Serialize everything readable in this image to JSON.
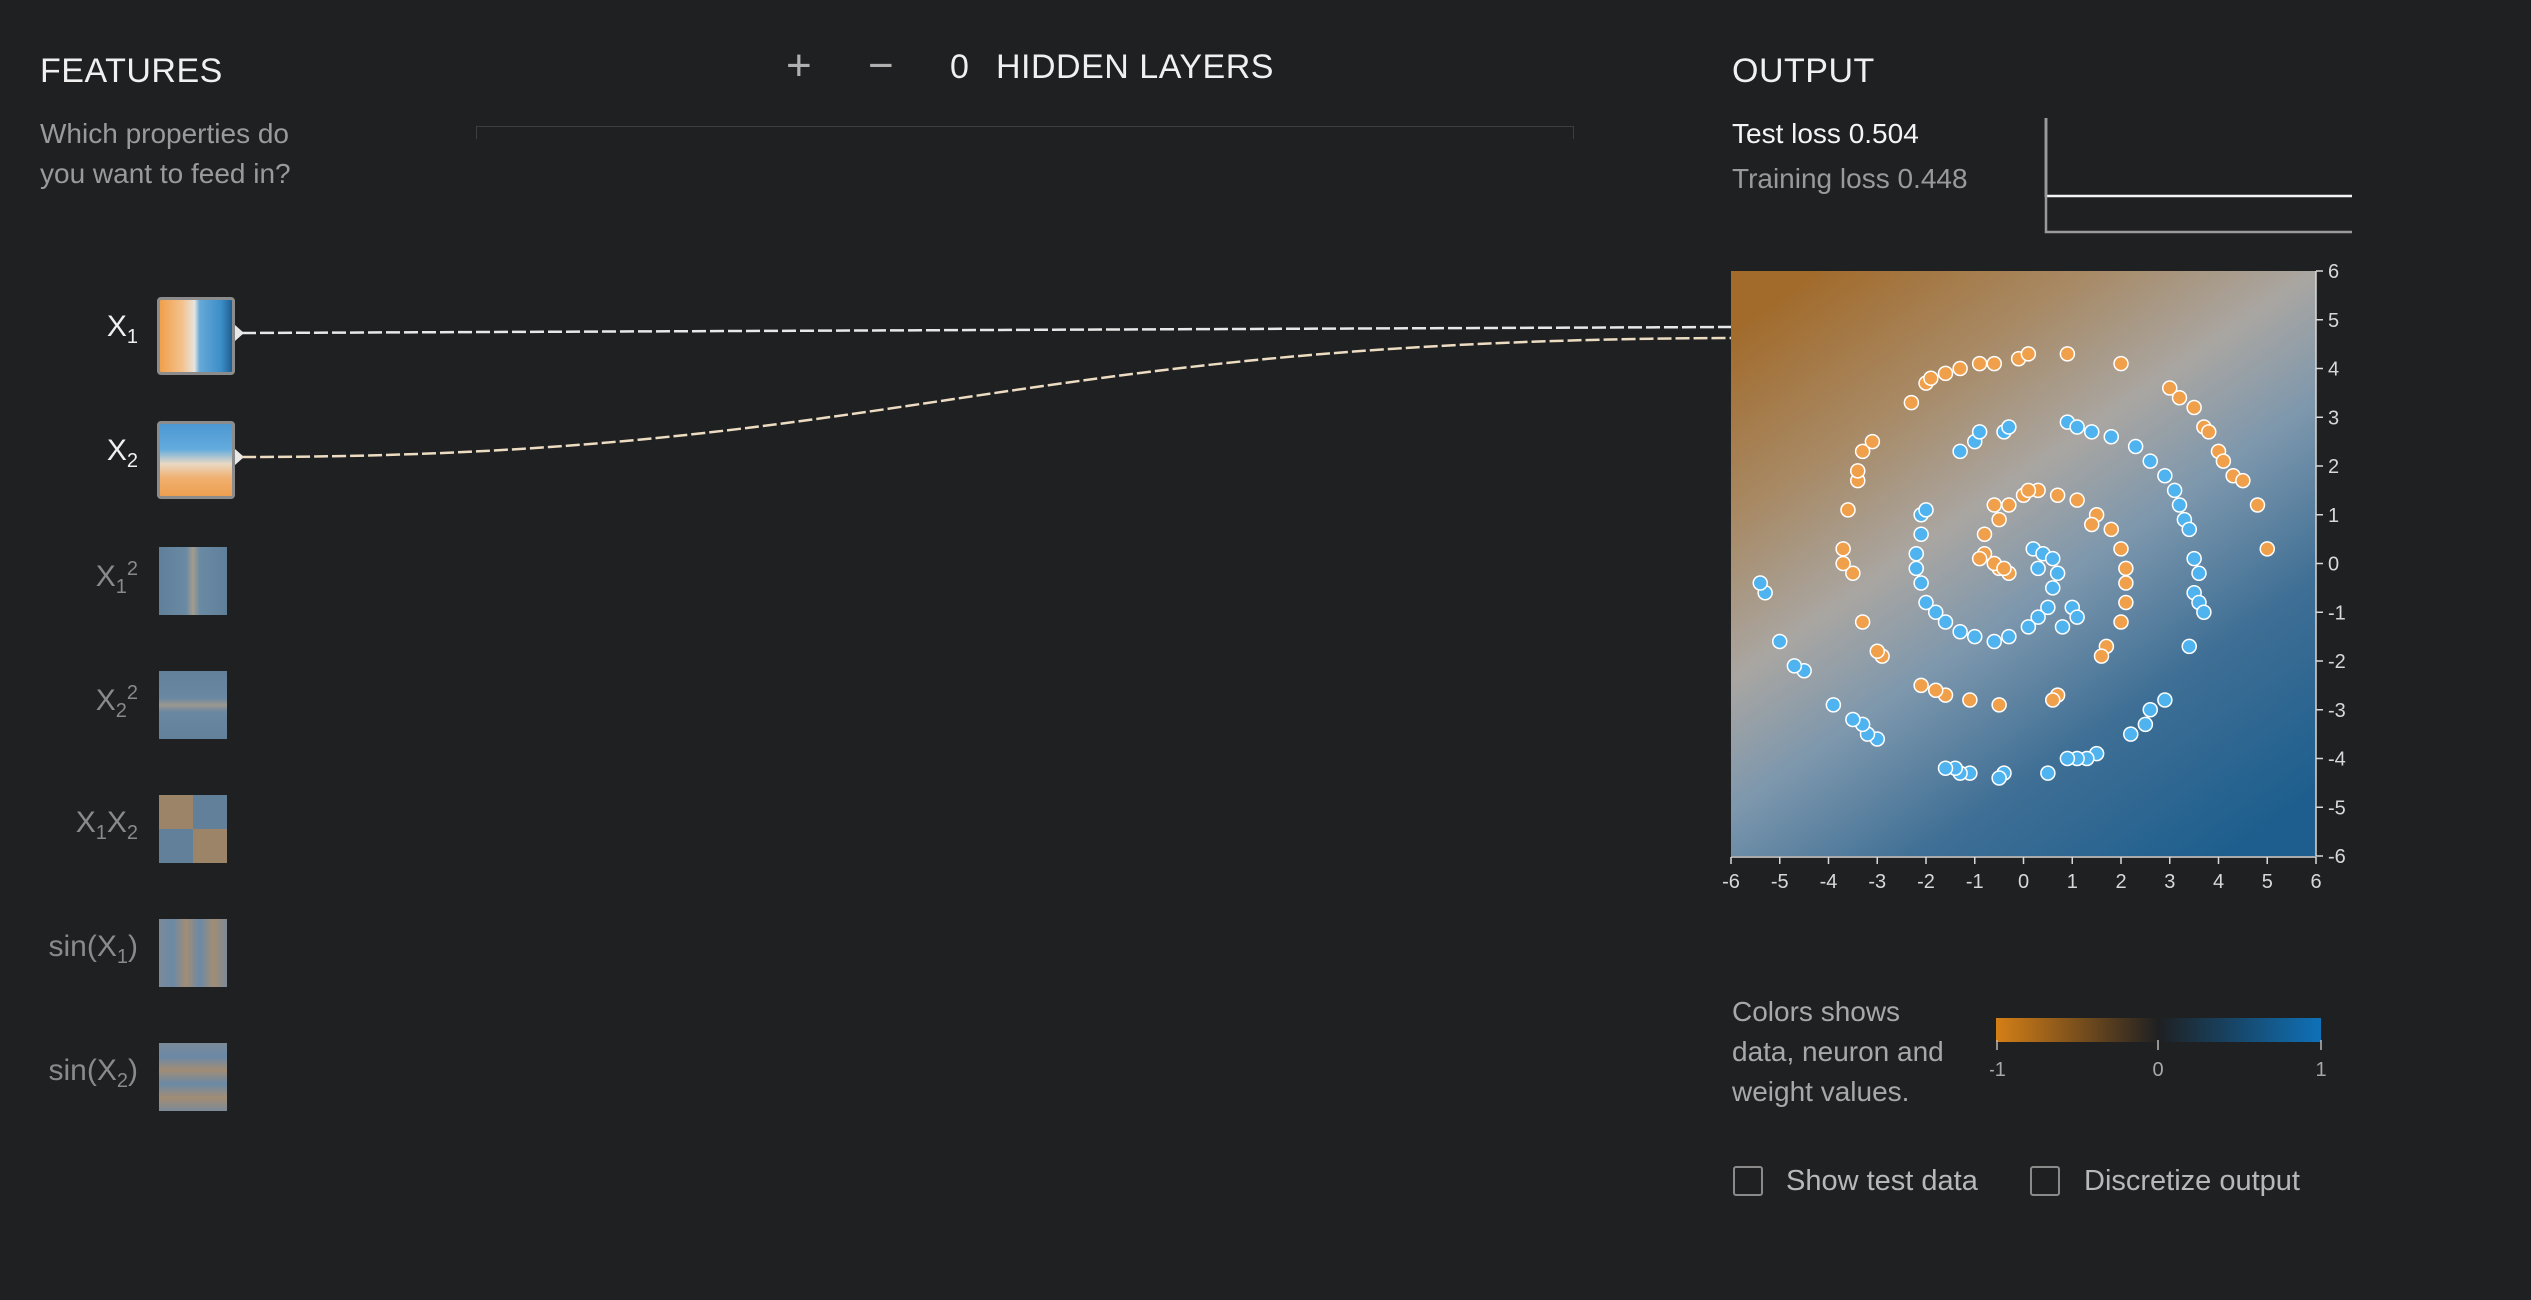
{
  "features": {
    "title": "FEATURES",
    "subtitle_line1": "Which properties do",
    "subtitle_line2": "you want to feed in?",
    "items": [
      {
        "base": "X",
        "sub": "1",
        "sup": "",
        "suffix": "",
        "active": true
      },
      {
        "base": "X",
        "sub": "2",
        "sup": "",
        "suffix": "",
        "active": true
      },
      {
        "base": "X",
        "sub": "1",
        "sup": "2",
        "suffix": "",
        "active": false
      },
      {
        "base": "X",
        "sub": "2",
        "sup": "2",
        "suffix": "",
        "active": false
      },
      {
        "base": "X",
        "sub": "1",
        "sup": "",
        "suffix": "X",
        "sub2": "2",
        "active": false
      },
      {
        "base": "sin(X",
        "sub": "1",
        "sup": "",
        "suffix": ")",
        "active": false
      },
      {
        "base": "sin(X",
        "sub": "2",
        "sup": "",
        "suffix": ")",
        "active": false
      }
    ]
  },
  "layers": {
    "add_symbol": "+",
    "remove_symbol": "−",
    "count": "0",
    "label": "HIDDEN LAYERS"
  },
  "output": {
    "title": "OUTPUT",
    "test_loss": "Test loss 0.504",
    "training_loss": "Training loss 0.448"
  },
  "legend": {
    "line1": "Colors shows",
    "line2": "data, neuron and",
    "line3": "weight values.",
    "ticks": [
      "-1",
      "0",
      "1"
    ],
    "colors": {
      "negative": "#d57f16",
      "zero": "#1f2022",
      "positive": "#0f71b8"
    }
  },
  "options": {
    "show_test_data": "Show test data",
    "discretize_output": "Discretize output"
  },
  "colors": {
    "orange": "#f0a04b",
    "blue": "#4fb3ef",
    "bg": "#1f2022"
  },
  "chart_data": {
    "type": "scatter",
    "xlim": [
      -6,
      6
    ],
    "ylim": [
      -6,
      6
    ],
    "x_ticks": [
      "-6",
      "-5",
      "-4",
      "-3",
      "-2",
      "-1",
      "0",
      "1",
      "2",
      "3",
      "4",
      "5",
      "6"
    ],
    "y_ticks": [
      "6",
      "5",
      "4",
      "3",
      "2",
      "1",
      "0",
      "-1",
      "-2",
      "-3",
      "-4",
      "-5",
      "-6"
    ],
    "series": [
      {
        "class": "orange",
        "points": [
          [
            -0.3,
            -0.2
          ],
          [
            -0.5,
            -0.1
          ],
          [
            -0.8,
            0.2
          ],
          [
            -0.8,
            0.6
          ],
          [
            -0.5,
            0.9
          ],
          [
            -0.3,
            1.2
          ],
          [
            0,
            1.4
          ],
          [
            0.3,
            1.5
          ],
          [
            0.7,
            1.4
          ],
          [
            1.1,
            1.3
          ],
          [
            1.5,
            1.0
          ],
          [
            1.8,
            0.7
          ],
          [
            2.0,
            0.3
          ],
          [
            2.1,
            -0.1
          ],
          [
            2.1,
            -0.4
          ],
          [
            2.1,
            -0.8
          ],
          [
            2.0,
            -1.2
          ],
          [
            1.7,
            -1.7
          ],
          [
            1.6,
            -1.9
          ],
          [
            0.7,
            -2.7
          ],
          [
            0.6,
            -2.8
          ],
          [
            -0.5,
            -2.9
          ],
          [
            -1.1,
            -2.8
          ],
          [
            -1.6,
            -2.7
          ],
          [
            -1.8,
            -2.6
          ],
          [
            -2.1,
            -2.5
          ],
          [
            -2.9,
            -1.9
          ],
          [
            -3.0,
            -1.8
          ],
          [
            -3.3,
            -1.2
          ],
          [
            -3.5,
            -0.2
          ],
          [
            -3.7,
            0
          ],
          [
            -3.7,
            0.3
          ],
          [
            -3.6,
            1.1
          ],
          [
            -3.4,
            1.7
          ],
          [
            -3.4,
            1.9
          ],
          [
            -3.3,
            2.3
          ],
          [
            -3.1,
            2.5
          ],
          [
            -2.3,
            3.3
          ],
          [
            -2.0,
            3.7
          ],
          [
            -1.9,
            3.8
          ],
          [
            -1.6,
            3.9
          ],
          [
            -1.3,
            4.0
          ],
          [
            -0.9,
            4.1
          ],
          [
            -0.6,
            4.1
          ],
          [
            -0.1,
            4.2
          ],
          [
            0.1,
            4.3
          ],
          [
            0.9,
            4.3
          ],
          [
            2.0,
            4.1
          ],
          [
            3.0,
            3.6
          ],
          [
            3.2,
            3.4
          ],
          [
            3.5,
            3.2
          ],
          [
            3.7,
            2.8
          ],
          [
            3.8,
            2.7
          ],
          [
            4.0,
            2.3
          ],
          [
            4.1,
            2.1
          ],
          [
            4.3,
            1.8
          ],
          [
            4.5,
            1.7
          ],
          [
            4.8,
            1.2
          ],
          [
            5.0,
            0.3
          ],
          [
            -0.9,
            0.1
          ],
          [
            -0.6,
            0.0
          ],
          [
            -0.4,
            -0.1
          ],
          [
            -0.6,
            1.2
          ],
          [
            0.1,
            1.5
          ],
          [
            1.4,
            0.8
          ]
        ]
      },
      {
        "class": "blue",
        "points": [
          [
            0.2,
            0.3
          ],
          [
            0.4,
            0.2
          ],
          [
            0.6,
            0.1
          ],
          [
            0.7,
            -0.2
          ],
          [
            0.6,
            -0.5
          ],
          [
            0.5,
            -0.9
          ],
          [
            0.3,
            -1.1
          ],
          [
            0.1,
            -1.3
          ],
          [
            -0.3,
            -1.5
          ],
          [
            -0.6,
            -1.6
          ],
          [
            -1.0,
            -1.5
          ],
          [
            -1.3,
            -1.4
          ],
          [
            -1.6,
            -1.2
          ],
          [
            -1.8,
            -1.0
          ],
          [
            -2.0,
            -0.8
          ],
          [
            -2.1,
            -0.4
          ],
          [
            -2.2,
            -0.1
          ],
          [
            -2.2,
            0.2
          ],
          [
            -2.1,
            0.6
          ],
          [
            -2.1,
            1.0
          ],
          [
            -2.0,
            1.1
          ],
          [
            -1.3,
            2.3
          ],
          [
            -1.0,
            2.5
          ],
          [
            -0.9,
            2.7
          ],
          [
            -0.4,
            2.7
          ],
          [
            -0.3,
            2.8
          ],
          [
            0.9,
            2.9
          ],
          [
            1.1,
            2.8
          ],
          [
            1.4,
            2.7
          ],
          [
            1.8,
            2.6
          ],
          [
            2.3,
            2.4
          ],
          [
            2.6,
            2.1
          ],
          [
            2.9,
            1.8
          ],
          [
            3.1,
            1.5
          ],
          [
            3.2,
            1.2
          ],
          [
            3.3,
            0.9
          ],
          [
            3.4,
            0.7
          ],
          [
            3.5,
            0.1
          ],
          [
            3.6,
            -0.2
          ],
          [
            3.5,
            -0.6
          ],
          [
            3.6,
            -0.8
          ],
          [
            3.7,
            -1.0
          ],
          [
            3.4,
            -1.7
          ],
          [
            2.9,
            -2.8
          ],
          [
            2.6,
            -3.0
          ],
          [
            2.5,
            -3.3
          ],
          [
            2.2,
            -3.5
          ],
          [
            1.5,
            -3.9
          ],
          [
            1.3,
            -4.0
          ],
          [
            1.1,
            -4.0
          ],
          [
            0.9,
            -4.0
          ],
          [
            0.5,
            -4.3
          ],
          [
            -0.4,
            -4.3
          ],
          [
            -0.5,
            -4.4
          ],
          [
            -1.1,
            -4.3
          ],
          [
            -1.3,
            -4.3
          ],
          [
            -1.4,
            -4.2
          ],
          [
            -1.6,
            -4.2
          ],
          [
            -3.0,
            -3.6
          ],
          [
            -3.2,
            -3.5
          ],
          [
            -3.3,
            -3.3
          ],
          [
            -3.5,
            -3.2
          ],
          [
            -3.9,
            -2.9
          ],
          [
            -4.5,
            -2.2
          ],
          [
            -4.7,
            -2.1
          ],
          [
            -5.0,
            -1.6
          ],
          [
            -5.3,
            -0.6
          ],
          [
            -5.4,
            -0.4
          ],
          [
            0.3,
            -0.1
          ],
          [
            1.0,
            -0.9
          ],
          [
            1.1,
            -1.1
          ],
          [
            0.8,
            -1.3
          ]
        ]
      }
    ]
  }
}
